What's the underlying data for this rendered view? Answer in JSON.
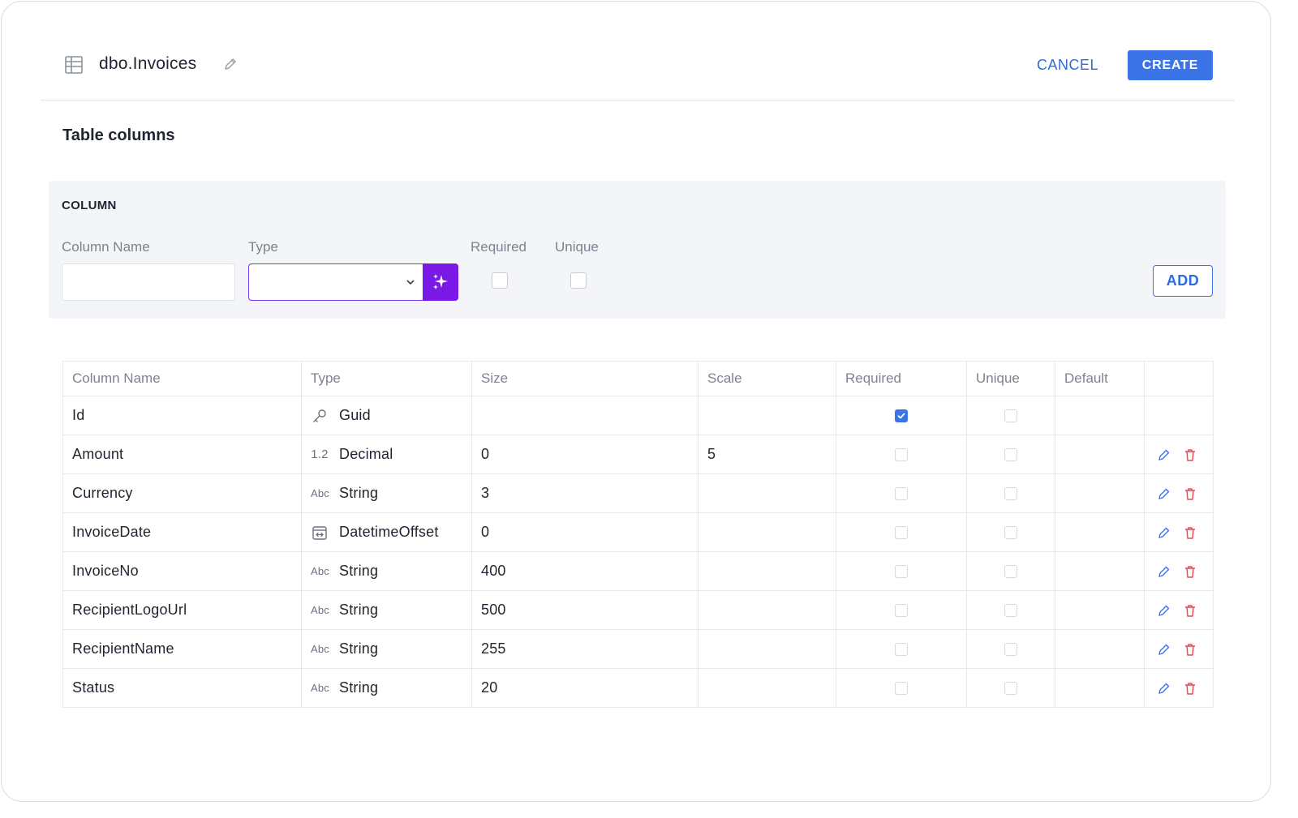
{
  "header": {
    "table_name": "dbo.Invoices",
    "cancel_label": "CANCEL",
    "create_label": "CREATE"
  },
  "section_title": "Table columns",
  "form": {
    "panel_label": "COLUMN",
    "column_name_label": "Column Name",
    "column_name_value": "",
    "type_label": "Type",
    "type_value": "",
    "required_label": "Required",
    "required_checked": false,
    "unique_label": "Unique",
    "unique_checked": false,
    "add_label": "ADD"
  },
  "columns_table": {
    "headers": [
      "Column Name",
      "Type",
      "Size",
      "Scale",
      "Required",
      "Unique",
      "Default",
      ""
    ],
    "rows": [
      {
        "name": "Id",
        "type": "Guid",
        "type_icon": "key-icon",
        "size": "",
        "scale": "",
        "required": true,
        "unique": false,
        "default": "",
        "editable": false
      },
      {
        "name": "Amount",
        "type": "Decimal",
        "type_icon": "decimal-icon",
        "size": "0",
        "scale": "5",
        "required": false,
        "unique": false,
        "default": "",
        "editable": true
      },
      {
        "name": "Currency",
        "type": "String",
        "type_icon": "string-icon",
        "size": "3",
        "scale": "",
        "required": false,
        "unique": false,
        "default": "",
        "editable": true
      },
      {
        "name": "InvoiceDate",
        "type": "DatetimeOffset",
        "type_icon": "datetime-offset-icon",
        "size": "0",
        "scale": "",
        "required": false,
        "unique": false,
        "default": "",
        "editable": true
      },
      {
        "name": "InvoiceNo",
        "type": "String",
        "type_icon": "string-icon",
        "size": "400",
        "scale": "",
        "required": false,
        "unique": false,
        "default": "",
        "editable": true
      },
      {
        "name": "RecipientLogoUrl",
        "type": "String",
        "type_icon": "string-icon",
        "size": "500",
        "scale": "",
        "required": false,
        "unique": false,
        "default": "",
        "editable": true
      },
      {
        "name": "RecipientName",
        "type": "String",
        "type_icon": "string-icon",
        "size": "255",
        "scale": "",
        "required": false,
        "unique": false,
        "default": "",
        "editable": true
      },
      {
        "name": "Status",
        "type": "String",
        "type_icon": "string-icon",
        "size": "20",
        "scale": "",
        "required": false,
        "unique": false,
        "default": "",
        "editable": true
      }
    ],
    "icons": {
      "decimal": "1.2",
      "string": "Abc"
    }
  },
  "colors": {
    "accent": "#3a74e6",
    "magic": "#7a18e6",
    "delete": "#e5484d"
  }
}
